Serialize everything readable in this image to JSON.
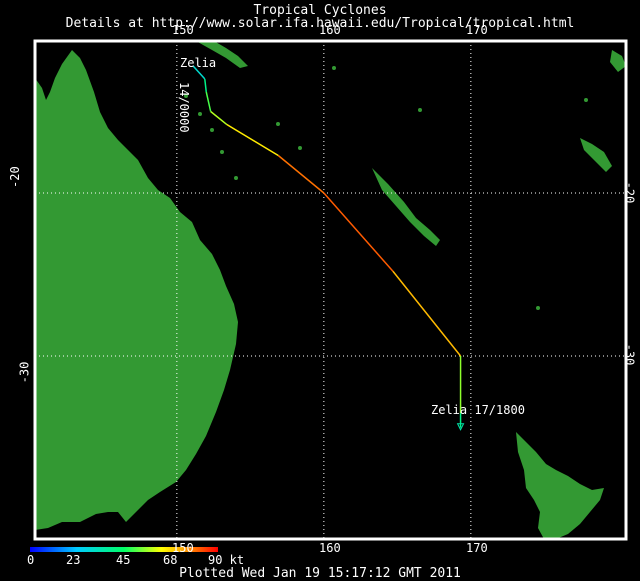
{
  "header": {
    "title": "Tropical Cyclones",
    "subtitle": "Details at http://www.solar.ifa.hawaii.edu/Tropical/tropical.html"
  },
  "map": {
    "lon_ticks_top": [
      "150",
      "160",
      "170"
    ],
    "lon_ticks_bottom": [
      "150",
      "160",
      "170"
    ],
    "lat_ticks_left": [
      "-20",
      "-30"
    ],
    "lat_ticks_right": [
      "-20",
      "-30"
    ],
    "grid": "dotted",
    "land_color": "#339933",
    "ocean_color": "#000000",
    "frame_color": "#ffffff"
  },
  "storm": {
    "name": "Zelia",
    "start_label": "Zelia",
    "start_time": "14/0000",
    "end_label": "Zelia  17/1800",
    "track": [
      {
        "lon": 151.1,
        "lat": -12.2,
        "kt": 25
      },
      {
        "lon": 151.9,
        "lat": -13.0,
        "kt": 35
      },
      {
        "lon": 152.0,
        "lat": -13.8,
        "kt": 45
      },
      {
        "lon": 152.3,
        "lat": -15.0,
        "kt": 55
      },
      {
        "lon": 153.4,
        "lat": -15.8,
        "kt": 60
      },
      {
        "lon": 156.9,
        "lat": -17.7,
        "kt": 70
      },
      {
        "lon": 160.0,
        "lat": -20.0,
        "kt": 85
      },
      {
        "lon": 164.7,
        "lat": -24.8,
        "kt": 75
      },
      {
        "lon": 169.3,
        "lat": -30.0,
        "kt": 65
      },
      {
        "lon": 169.3,
        "lat": -33.5,
        "kt": 45
      },
      {
        "lon": 169.3,
        "lat": -34.4,
        "kt": 35
      }
    ]
  },
  "legend": {
    "labels": [
      "0",
      "23",
      "45",
      "68",
      "90 kt"
    ]
  },
  "footer": {
    "plotted": "Plotted Wed Jan 19 15:17:12 GMT 2011"
  }
}
